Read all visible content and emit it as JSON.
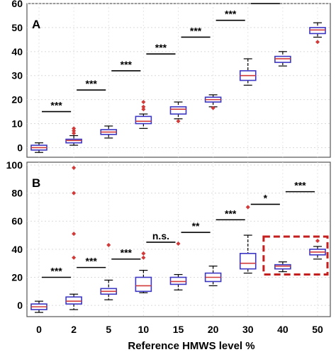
{
  "chart_data": {
    "type": "boxplot",
    "xlabel": "Reference HMWS level %",
    "categories": [
      "0",
      "2",
      "5",
      "10",
      "15",
      "20",
      "30",
      "40",
      "50"
    ],
    "colors": {
      "box": "#3b36c4",
      "median": "#d23a3a",
      "outlier": "#d23a3a",
      "highlight": "#c41e1e"
    },
    "panels": [
      {
        "label": "A",
        "ylim": [
          -4,
          60
        ],
        "yticks": [
          0,
          10,
          20,
          30,
          40,
          50,
          60
        ],
        "boxes": [
          {
            "category": "0",
            "whisker_low": -2,
            "q1": -1,
            "median": 0,
            "q3": 1,
            "whisker_high": 2,
            "outliers": []
          },
          {
            "category": "2",
            "whisker_low": 1,
            "q1": 2,
            "median": 3,
            "q3": 3.5,
            "whisker_high": 5,
            "outliers": [
              6,
              7,
              8
            ]
          },
          {
            "category": "5",
            "whisker_low": 4,
            "q1": 5.5,
            "median": 6.5,
            "q3": 7.5,
            "whisker_high": 9,
            "outliers": []
          },
          {
            "category": "10",
            "whisker_low": 8,
            "q1": 10,
            "median": 11,
            "q3": 13,
            "whisker_high": 14,
            "outliers": [
              16,
              17,
              19
            ]
          },
          {
            "category": "15",
            "whisker_low": 12,
            "q1": 14,
            "median": 16,
            "q3": 17,
            "whisker_high": 19,
            "outliers": [
              11
            ]
          },
          {
            "category": "20",
            "whisker_low": 17,
            "q1": 19,
            "median": 20,
            "q3": 21,
            "whisker_high": 22,
            "outliers": [
              16.5
            ]
          },
          {
            "category": "30",
            "whisker_low": 26,
            "q1": 28,
            "median": 30,
            "q3": 32,
            "whisker_high": 37,
            "outliers": []
          },
          {
            "category": "40",
            "whisker_low": 34,
            "q1": 35.5,
            "median": 37,
            "q3": 38,
            "whisker_high": 40,
            "outliers": []
          },
          {
            "category": "50",
            "whisker_low": 46,
            "q1": 47.5,
            "median": 49,
            "q3": 50,
            "whisker_high": 52,
            "outliers": [
              44
            ]
          }
        ],
        "significance": [
          {
            "from": "0",
            "to": "2",
            "label": "***",
            "y": 15
          },
          {
            "from": "2",
            "to": "5",
            "label": "***",
            "y": 24
          },
          {
            "from": "5",
            "to": "10",
            "label": "***",
            "y": 32
          },
          {
            "from": "10",
            "to": "15",
            "label": "***",
            "y": 39
          },
          {
            "from": "15",
            "to": "20",
            "label": "***",
            "y": 46
          },
          {
            "from": "20",
            "to": "30",
            "label": "***",
            "y": 53
          },
          {
            "from": "30",
            "to": "40",
            "label": "***",
            "y": 60
          },
          {
            "from": "40",
            "to": "50",
            "label": "***",
            "y": 67
          }
        ]
      },
      {
        "label": "B",
        "ylim": [
          -8,
          102
        ],
        "yticks": [
          0,
          20,
          40,
          60,
          80,
          100
        ],
        "boxes": [
          {
            "category": "0",
            "whisker_low": -5,
            "q1": -3,
            "median": -1,
            "q3": 1,
            "whisker_high": 3,
            "outliers": []
          },
          {
            "category": "2",
            "whisker_low": -3,
            "q1": 1,
            "median": 3,
            "q3": 6,
            "whisker_high": 8,
            "outliers": [
              34,
              51,
              80,
              98
            ]
          },
          {
            "category": "5",
            "whisker_low": 4,
            "q1": 8,
            "median": 10,
            "q3": 12,
            "whisker_high": 18,
            "outliers": [
              43
            ]
          },
          {
            "category": "10",
            "whisker_low": 9,
            "q1": 10,
            "median": 14,
            "q3": 20,
            "whisker_high": 25,
            "outliers": [
              34,
              37
            ]
          },
          {
            "category": "15",
            "whisker_low": 11,
            "q1": 15,
            "median": 17,
            "q3": 20,
            "whisker_high": 22,
            "outliers": [
              44
            ]
          },
          {
            "category": "20",
            "whisker_low": 14,
            "q1": 17,
            "median": 20,
            "q3": 23,
            "whisker_high": 28,
            "outliers": []
          },
          {
            "category": "30",
            "whisker_low": 23,
            "q1": 26,
            "median": 30,
            "q3": 37,
            "whisker_high": 50,
            "outliers": [
              70
            ]
          },
          {
            "category": "40",
            "whisker_low": 24,
            "q1": 26,
            "median": 28,
            "q3": 29,
            "whisker_high": 31,
            "outliers": []
          },
          {
            "category": "50",
            "whisker_low": 33,
            "q1": 36,
            "median": 38,
            "q3": 40,
            "whisker_high": 42,
            "outliers": [
              46
            ]
          }
        ],
        "significance": [
          {
            "from": "0",
            "to": "2",
            "label": "***",
            "y": 20
          },
          {
            "from": "2",
            "to": "5",
            "label": "***",
            "y": 27
          },
          {
            "from": "5",
            "to": "10",
            "label": "***",
            "y": 33
          },
          {
            "from": "10",
            "to": "15",
            "label": "n.s.",
            "y": 45
          },
          {
            "from": "15",
            "to": "20",
            "label": "**",
            "y": 52
          },
          {
            "from": "20",
            "to": "30",
            "label": "***",
            "y": 61
          },
          {
            "from": "30",
            "to": "40",
            "label": "*",
            "y": 72
          },
          {
            "from": "40",
            "to": "50",
            "label": "***",
            "y": 81
          }
        ],
        "highlight": {
          "from": "40",
          "to": "50",
          "y_low": 22,
          "y_high": 49
        }
      }
    ]
  }
}
